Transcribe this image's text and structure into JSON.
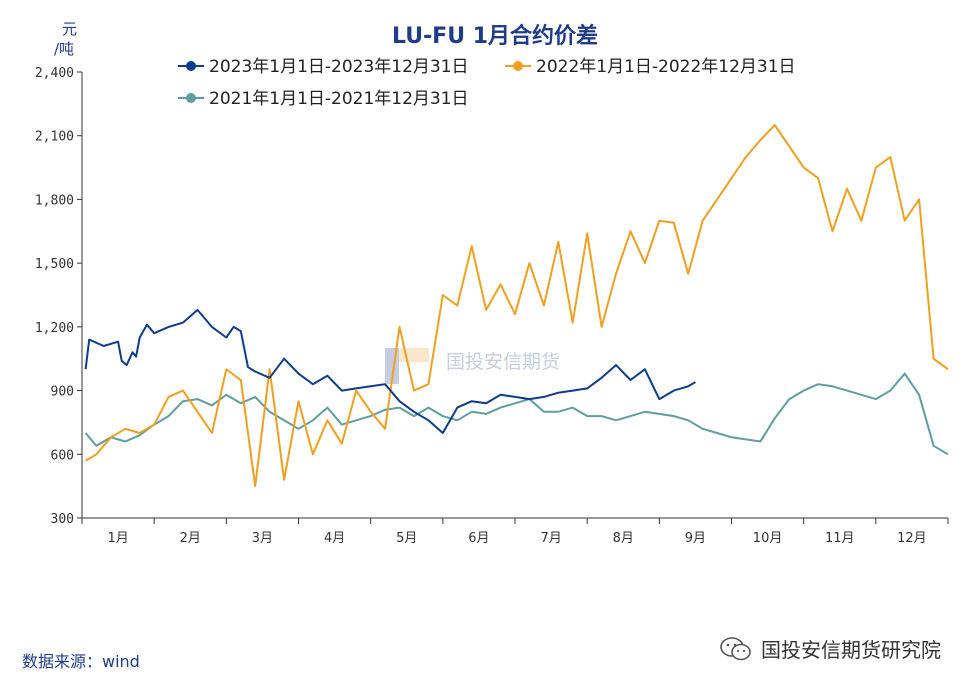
{
  "chart_data": {
    "type": "line",
    "title": "LU-FU 1月合约价差",
    "ylabel": "元/吨",
    "ylim": [
      300,
      2400
    ],
    "yticks": [
      300,
      600,
      900,
      "1,200",
      "1,500",
      "1,800",
      "2,100",
      "2,400"
    ],
    "ytick_values": [
      300,
      600,
      900,
      1200,
      1500,
      1800,
      2100,
      2400
    ],
    "months": [
      "1月",
      "2月",
      "3月",
      "4月",
      "5月",
      "6月",
      "7月",
      "8月",
      "9月",
      "10月",
      "11月",
      "12月"
    ],
    "grid": false,
    "legend_position": "top",
    "watermark": "国投安信期货",
    "series": [
      {
        "name": "2023年1月1日-2023年12月31日",
        "color": "#0d3b8e",
        "x": [
          0.05,
          0.1,
          0.3,
          0.5,
          0.55,
          0.62,
          0.7,
          0.75,
          0.8,
          0.9,
          1.0,
          1.2,
          1.4,
          1.6,
          1.8,
          2.0,
          2.1,
          2.2,
          2.3,
          2.4,
          2.6,
          2.8,
          3.0,
          3.2,
          3.4,
          3.6,
          3.8,
          4.0,
          4.2,
          4.4,
          4.6,
          4.8,
          5.0,
          5.2,
          5.4,
          5.6,
          5.8,
          6.0,
          6.2,
          6.4,
          6.6,
          6.8,
          7.0,
          7.2,
          7.4,
          7.6,
          7.8,
          8.0,
          8.2,
          8.4,
          8.5
        ],
        "y": [
          1000,
          1140,
          1110,
          1130,
          1040,
          1020,
          1080,
          1060,
          1150,
          1210,
          1170,
          1200,
          1220,
          1280,
          1200,
          1150,
          1200,
          1180,
          1010,
          990,
          960,
          1050,
          980,
          930,
          970,
          900,
          910,
          920,
          930,
          850,
          800,
          760,
          700,
          820,
          850,
          840,
          880,
          870,
          860,
          870,
          890,
          900,
          910,
          960,
          1020,
          950,
          1000,
          860,
          900,
          920,
          940
        ]
      },
      {
        "name": "2022年1月1日-2022年12月31日",
        "color": "#f0a01e",
        "x": [
          0.05,
          0.2,
          0.4,
          0.6,
          0.8,
          1.0,
          1.2,
          1.4,
          1.6,
          1.8,
          2.0,
          2.2,
          2.4,
          2.6,
          2.8,
          3.0,
          3.2,
          3.4,
          3.6,
          3.8,
          4.0,
          4.2,
          4.4,
          4.6,
          4.8,
          5.0,
          5.2,
          5.4,
          5.6,
          5.8,
          6.0,
          6.2,
          6.4,
          6.6,
          6.8,
          7.0,
          7.2,
          7.4,
          7.6,
          7.8,
          8.0,
          8.2,
          8.4,
          8.6,
          8.8,
          9.0,
          9.2,
          9.4,
          9.6,
          9.8,
          10.0,
          10.2,
          10.4,
          10.6,
          10.8,
          11.0,
          11.2,
          11.4,
          11.6,
          11.8,
          12.0
        ],
        "y": [
          570,
          600,
          680,
          720,
          700,
          740,
          870,
          900,
          800,
          700,
          1000,
          950,
          450,
          1000,
          480,
          850,
          600,
          760,
          650,
          900,
          800,
          720,
          1200,
          900,
          930,
          1350,
          1300,
          1580,
          1280,
          1400,
          1260,
          1500,
          1300,
          1600,
          1220,
          1640,
          1200,
          1450,
          1650,
          1500,
          1700,
          1690,
          1450,
          1700,
          1800,
          1900,
          2000,
          2080,
          2150,
          2050,
          1950,
          1900,
          1650,
          1850,
          1700,
          1950,
          2000,
          1700,
          1800,
          1050,
          1000
        ]
      },
      {
        "name": "2021年1月1日-2021年12月31日",
        "color": "#5f9ea0",
        "x": [
          0.05,
          0.2,
          0.4,
          0.6,
          0.8,
          1.0,
          1.2,
          1.4,
          1.6,
          1.8,
          2.0,
          2.2,
          2.4,
          2.6,
          2.8,
          3.0,
          3.2,
          3.4,
          3.6,
          3.8,
          4.0,
          4.2,
          4.4,
          4.6,
          4.8,
          5.0,
          5.2,
          5.4,
          5.6,
          5.8,
          6.0,
          6.2,
          6.4,
          6.6,
          6.8,
          7.0,
          7.2,
          7.4,
          7.6,
          7.8,
          8.0,
          8.2,
          8.4,
          8.6,
          8.8,
          9.0,
          9.2,
          9.4,
          9.6,
          9.8,
          10.0,
          10.2,
          10.4,
          10.6,
          10.8,
          11.0,
          11.2,
          11.4,
          11.6,
          11.8,
          12.0
        ],
        "y": [
          700,
          640,
          680,
          660,
          690,
          740,
          780,
          850,
          860,
          830,
          880,
          840,
          870,
          800,
          760,
          720,
          760,
          820,
          740,
          760,
          780,
          810,
          820,
          780,
          820,
          780,
          760,
          800,
          790,
          820,
          840,
          860,
          800,
          800,
          820,
          780,
          780,
          760,
          780,
          800,
          790,
          780,
          760,
          720,
          700,
          680,
          670,
          660,
          770,
          860,
          900,
          930,
          920,
          900,
          880,
          860,
          900,
          980,
          880,
          640,
          600
        ]
      }
    ]
  },
  "source_label": "数据来源：wind",
  "brand_label": "国投安信期货研究院",
  "wechat_icon": "wechat-icon"
}
